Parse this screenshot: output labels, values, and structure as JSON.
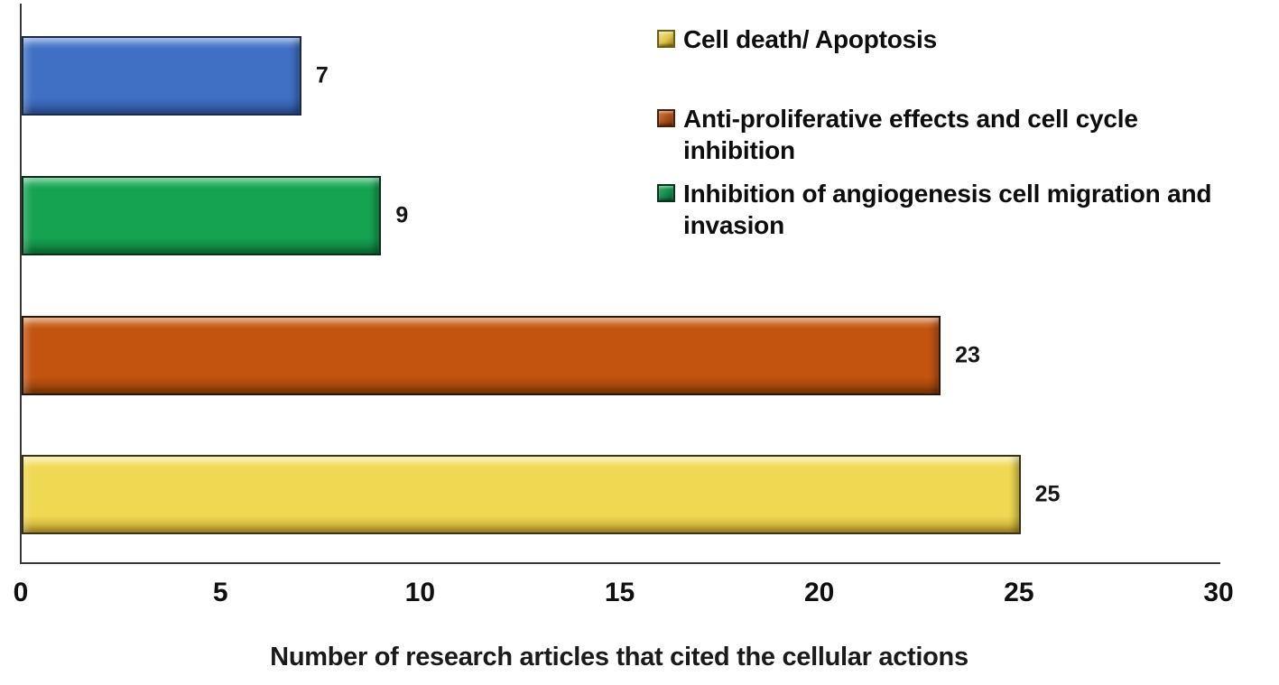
{
  "chart_data": {
    "type": "bar",
    "orientation": "horizontal",
    "xlabel": "Number of research articles that cited the cellular actions",
    "xlim": [
      0,
      30
    ],
    "xticks": [
      0,
      5,
      10,
      15,
      20,
      25,
      30
    ],
    "grid": false,
    "legend_position": "upper right",
    "bars": [
      {
        "value": 7,
        "data_label": "7",
        "fill": "#4070C4",
        "light": "#7FA2E0",
        "dark": "#2C55A0",
        "edge": "#1B2A4A"
      },
      {
        "value": 9,
        "data_label": "9",
        "fill": "#16A351",
        "light": "#52C483",
        "dark": "#0B7A3A",
        "edge": "#0D2C1A"
      },
      {
        "value": 23,
        "data_label": "23",
        "fill": "#C25410",
        "light": "#E0915A",
        "dark": "#8C3D09",
        "edge": "#2E1505"
      },
      {
        "value": 25,
        "data_label": "25",
        "fill": "#EFD852",
        "light": "#FAF0A4",
        "dark": "#C0A02B",
        "edge": "#3B3310"
      }
    ],
    "legend": [
      {
        "label": "Cell death/ Apoptosis",
        "fill": "#DDC345",
        "light": "#F4E794",
        "dark": "#8F7519",
        "edge": "#6E5D14"
      },
      {
        "label": "Anti-proliferative effects and cell cycle inhibition",
        "fill": "#A94C1B",
        "light": "#CE7E3F",
        "dark": "#6F2F0C",
        "edge": "#471D06"
      },
      {
        "label": "Inhibition of angiogenesis cell migration and invasion",
        "fill": "#12894A",
        "light": "#41AE70",
        "dark": "#0A5B30",
        "edge": "#06341B"
      }
    ]
  }
}
